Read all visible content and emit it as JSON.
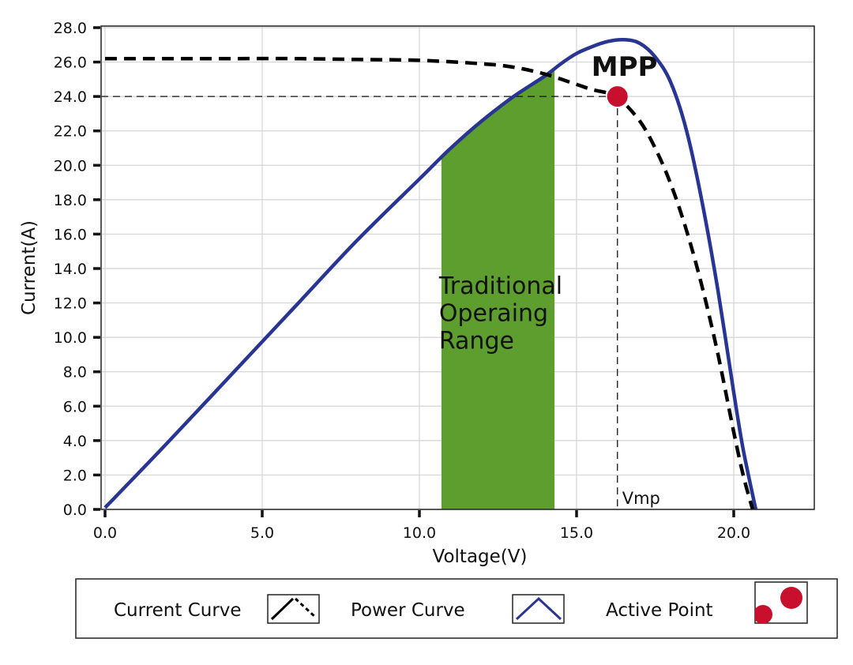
{
  "chart_data": {
    "type": "line",
    "title": "",
    "xlabel": "Voltage(V)",
    "ylabel": "Current(A)",
    "xlim": [
      0,
      22.5
    ],
    "ylim": [
      0,
      28
    ],
    "x_ticks": [
      0,
      5,
      10,
      15,
      20
    ],
    "x_tick_labels": [
      "0.0",
      "5.0",
      "10.0",
      "15.0",
      "20.0"
    ],
    "y_ticks": [
      0,
      2,
      4,
      6,
      8,
      10,
      12,
      14,
      16,
      18,
      20,
      22,
      24,
      26,
      28
    ],
    "y_tick_labels": [
      "0.0",
      "2.0",
      "4.0",
      "6.0",
      "8.0",
      "10.0",
      "12.0",
      "14.0",
      "16.0",
      "18.0",
      "20.0",
      "22.0",
      "24.0",
      "26.0",
      "28.0"
    ],
    "grid": true,
    "series": [
      {
        "name": "Current Curve",
        "style": "dashed",
        "color": "#000000",
        "x": [
          0,
          2,
          4,
          6,
          8,
          10,
          12,
          13,
          14,
          15,
          15.5,
          16,
          16.3,
          17,
          17.5,
          18,
          18.5,
          19,
          19.5,
          20,
          20.3,
          20.6
        ],
        "y": [
          26.2,
          26.2,
          26.2,
          26.2,
          26.15,
          26.1,
          25.9,
          25.7,
          25.3,
          24.7,
          24.4,
          24.2,
          24.0,
          22.6,
          21.0,
          18.9,
          16.2,
          12.9,
          9.0,
          4.5,
          2.0,
          0.0
        ]
      },
      {
        "name": "Power Curve",
        "style": "solid",
        "color": "#283593",
        "x": [
          0,
          2,
          4,
          6,
          8,
          10,
          11,
          12,
          13,
          14,
          14.5,
          15,
          15.5,
          16,
          16.5,
          17,
          17.5,
          18,
          18.5,
          19,
          19.5,
          20,
          20.3,
          20.7
        ],
        "y": [
          0.1,
          3.9,
          7.8,
          11.7,
          15.6,
          19.2,
          21.0,
          22.6,
          24.0,
          25.2,
          25.9,
          26.5,
          26.9,
          27.2,
          27.3,
          27.1,
          26.3,
          24.8,
          22.0,
          17.8,
          12.7,
          6.8,
          3.5,
          0.0
        ]
      }
    ],
    "active_point": {
      "x": 16.3,
      "y": 24.0,
      "color": "#c8102e"
    },
    "vmp_line_x": 16.3,
    "shaded_range": {
      "x0": 10.7,
      "x1": 14.3,
      "color": "#5d9e2f"
    },
    "annotations": {
      "mpp": "MPP",
      "vmp": "Vmp",
      "range_line1": "Traditional",
      "range_line2": "Operaing",
      "range_line3": "Range"
    },
    "legend": {
      "placement": "bottom",
      "items": [
        "Current Curve",
        "Power Curve",
        "Active Point"
      ]
    }
  }
}
